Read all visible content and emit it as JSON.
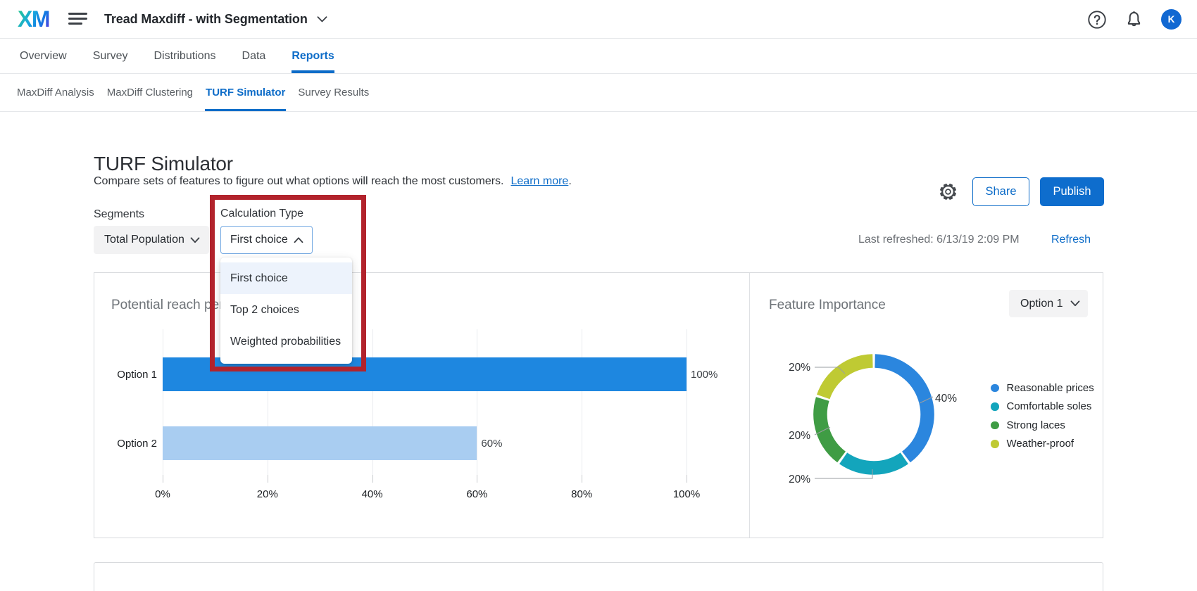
{
  "topbar": {
    "logo": "XM",
    "project_title": "Tread Maxdiff - with Segmentation",
    "avatar_initial": "K"
  },
  "nav": {
    "items": [
      "Overview",
      "Survey",
      "Distributions",
      "Data",
      "Reports"
    ],
    "active": "Reports"
  },
  "subnav": {
    "items": [
      "MaxDiff Analysis",
      "MaxDiff Clustering",
      "TURF Simulator",
      "Survey Results"
    ],
    "active": "TURF Simulator"
  },
  "page": {
    "title": "TURF Simulator",
    "description": "Compare sets of features to figure out what options will reach the most customers.",
    "learn_more_label": "Learn more",
    "learn_more_suffix": "."
  },
  "toolbar": {
    "share_label": "Share",
    "publish_label": "Publish"
  },
  "filters": {
    "segments_label": "Segments",
    "segments_value": "Total Population",
    "calculation_label": "Calculation Type",
    "calculation_value": "First choice",
    "dropdown_options": [
      "First choice",
      "Top 2 choices",
      "Weighted probabilities"
    ],
    "selected_option": "First choice"
  },
  "refresh": {
    "last_refreshed": "Last refreshed: 6/13/19 2:09 PM",
    "refresh_label": "Refresh"
  },
  "annotation": {
    "color": "#b2232c"
  },
  "colors": {
    "accent_blue": "#0d6cc8",
    "publish_button_bg": "#0e6dcd",
    "avatar_bg": "#1168d2",
    "link_blue": "#0d6cc8",
    "bar_primary": "#1e87e0",
    "bar_secondary": "#a9cdf1",
    "annotation_red": "#b2232c"
  },
  "icons": [
    "xm-logo",
    "hamburger-menu-icon",
    "chevron-down-icon",
    "chevron-up-icon",
    "help-icon",
    "notifications-bell-icon",
    "settings-gear-icon"
  ],
  "chart_data": [
    {
      "type": "bar",
      "title": "Potential reach per",
      "orientation": "horizontal",
      "categories": [
        "Option 1",
        "Option 2"
      ],
      "values": [
        100,
        60
      ],
      "value_labels": [
        "100%",
        "60%"
      ],
      "bar_colors": [
        "#1e87e0",
        "#a9cdf1"
      ],
      "x_ticks": [
        "0%",
        "20%",
        "40%",
        "60%",
        "80%",
        "100%"
      ],
      "xlim": [
        0,
        100
      ],
      "grid": true,
      "ylabel": "",
      "xlabel": ""
    },
    {
      "type": "donut",
      "title": "Feature Importance",
      "selector_value": "Option 1",
      "series": [
        {
          "name": "Reasonable prices",
          "value": 40,
          "color": "#2b86de",
          "label": "40%"
        },
        {
          "name": "Comfortable soles",
          "value": 20,
          "color": "#13a5bc",
          "label": "20%"
        },
        {
          "name": "Strong laces",
          "value": 20,
          "color": "#3f9c44",
          "label": "20%"
        },
        {
          "name": "Weather-proof",
          "value": 20,
          "color": "#bfca33",
          "label": "20%"
        }
      ],
      "legend_position": "right"
    }
  ]
}
